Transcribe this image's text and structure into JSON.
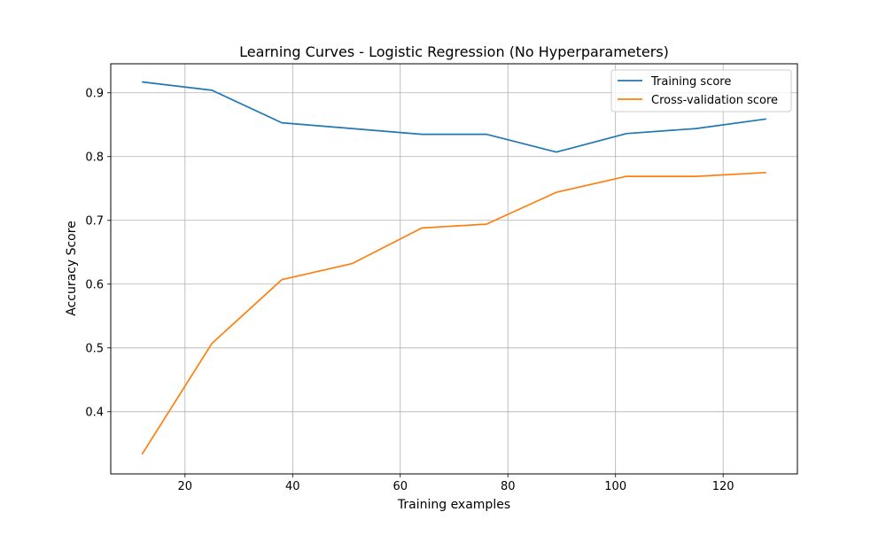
{
  "chart_data": {
    "type": "line",
    "title": "Learning Curves - Logistic Regression (No Hyperparameters)",
    "xlabel": "Training examples",
    "ylabel": "Accuracy Score",
    "xlim": [
      6.2,
      133.8
    ],
    "ylim": [
      0.3025,
      0.9455
    ],
    "xticks": [
      20,
      40,
      60,
      80,
      100,
      120
    ],
    "yticks": [
      0.4,
      0.5,
      0.6,
      0.7,
      0.8,
      0.9
    ],
    "xtick_labels": [
      "20",
      "40",
      "60",
      "80",
      "100",
      "120"
    ],
    "ytick_labels": [
      "0.4",
      "0.5",
      "0.6",
      "0.7",
      "0.8",
      "0.9"
    ],
    "grid": true,
    "legend_position": "top-right",
    "x": [
      12,
      25,
      38,
      51,
      64,
      76,
      89,
      102,
      115,
      128
    ],
    "series": [
      {
        "name": "Training score",
        "color": "#1f77b4",
        "values": [
          0.917,
          0.904,
          0.853,
          0.844,
          0.835,
          0.835,
          0.807,
          0.836,
          0.844,
          0.859
        ]
      },
      {
        "name": "Cross-validation score",
        "color": "#ff7f0e",
        "values": [
          0.333,
          0.507,
          0.607,
          0.632,
          0.688,
          0.694,
          0.744,
          0.769,
          0.769,
          0.775
        ]
      }
    ]
  }
}
